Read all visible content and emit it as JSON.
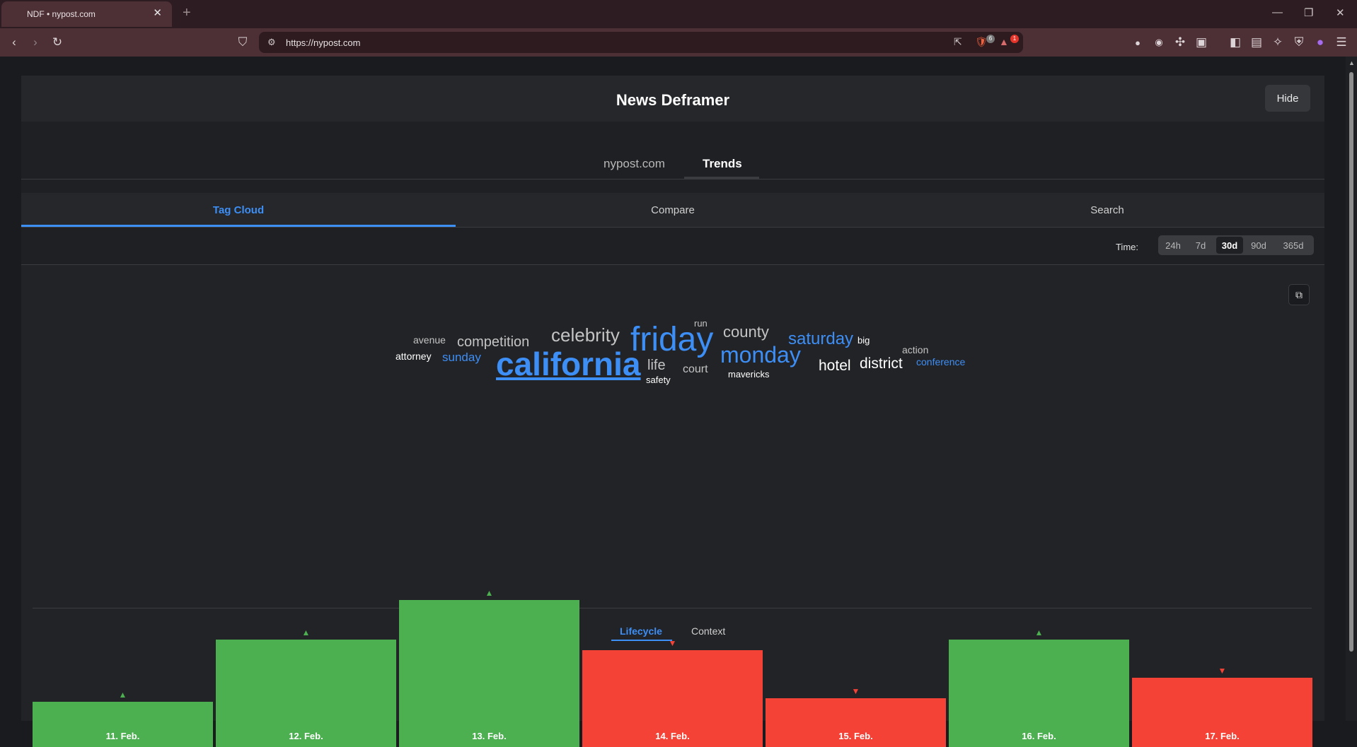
{
  "browser": {
    "tab_title": "NDF • nypost.com",
    "url": "https://nypost.com",
    "shield_badge": "6",
    "alert_badge": "1"
  },
  "panel": {
    "title": "News Deframer",
    "hide_label": "Hide",
    "main_tabs": [
      "nypost.com",
      "Trends"
    ],
    "active_main_tab": "Trends",
    "sub_tabs": [
      "Tag Cloud",
      "Compare",
      "Search"
    ],
    "active_sub_tab": "Tag Cloud",
    "time_label": "Time:",
    "time_options": [
      "24h",
      "7d",
      "30d",
      "90d",
      "365d"
    ],
    "active_time": "30d",
    "lifecycle_tabs": [
      "Lifecycle",
      "Context"
    ],
    "active_lifecycle_tab": "Lifecycle"
  },
  "tag_cloud": [
    {
      "word": "avenue",
      "color": "gray"
    },
    {
      "word": "attorney",
      "color": "white"
    },
    {
      "word": "competition",
      "color": "gray"
    },
    {
      "word": "sunday",
      "color": "blue"
    },
    {
      "word": "celebrity",
      "color": "gray"
    },
    {
      "word": "california",
      "color": "blue",
      "highlighted": true
    },
    {
      "word": "friday",
      "color": "blue"
    },
    {
      "word": "run",
      "color": "gray"
    },
    {
      "word": "life",
      "color": "gray"
    },
    {
      "word": "safety",
      "color": "white"
    },
    {
      "word": "court",
      "color": "gray"
    },
    {
      "word": "county",
      "color": "gray"
    },
    {
      "word": "monday",
      "color": "blue"
    },
    {
      "word": "mavericks",
      "color": "white"
    },
    {
      "word": "saturday",
      "color": "blue"
    },
    {
      "word": "hotel",
      "color": "white"
    },
    {
      "word": "big",
      "color": "white"
    },
    {
      "word": "district",
      "color": "white"
    },
    {
      "word": "action",
      "color": "gray"
    },
    {
      "word": "conference",
      "color": "blue"
    }
  ],
  "chart_data": {
    "type": "bar",
    "categories": [
      "11. Feb.",
      "12. Feb.",
      "13. Feb.",
      "14. Feb.",
      "15. Feb.",
      "16. Feb.",
      "17. Feb."
    ],
    "values": [
      31,
      73,
      100,
      66,
      33,
      73,
      47
    ],
    "trend": [
      "up",
      "up",
      "up",
      "down",
      "down",
      "up",
      "down"
    ],
    "colors": {
      "up": "#4caf50",
      "down": "#f44336"
    }
  }
}
